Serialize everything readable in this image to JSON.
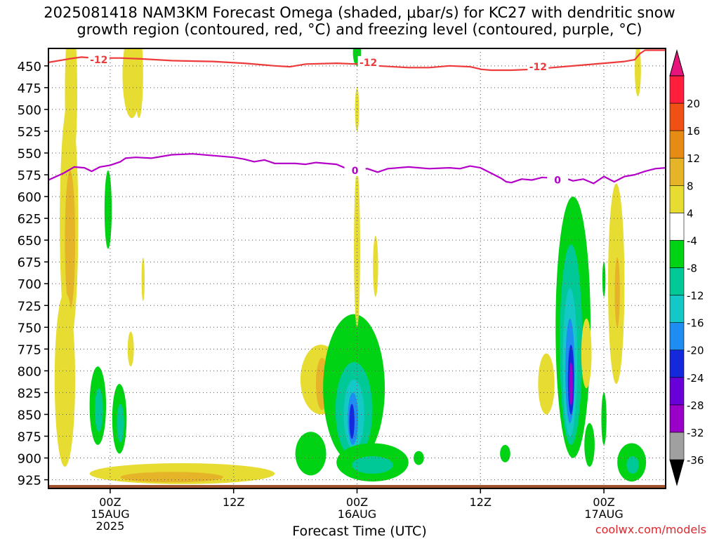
{
  "header": {
    "title_line1": "2025081418 NAM3KM Forecast Omega (shaded, μbar/s) for KC27 with dendritic snow",
    "title_line2": "growth region (contoured, red, °C) and freezing level (contoured, purple, °C)"
  },
  "footer": {
    "credit": "coolwx.com/models",
    "x_axis_title": "Forecast Time (UTC)"
  },
  "chart_data": {
    "type": "heatmap",
    "x_axis": {
      "label": "Forecast Time (UTC)",
      "unit": "hours from 2025-08-14 18Z",
      "range": [
        0,
        60
      ],
      "ticks": [
        {
          "hour": 6,
          "label": "00Z",
          "sub": "15AUG",
          "sub2": "2025"
        },
        {
          "hour": 18,
          "label": "12Z",
          "sub": "",
          "sub2": ""
        },
        {
          "hour": 30,
          "label": "00Z",
          "sub": "16AUG",
          "sub2": ""
        },
        {
          "hour": 42,
          "label": "12Z",
          "sub": "",
          "sub2": ""
        },
        {
          "hour": 54,
          "label": "00Z",
          "sub": "17AUG",
          "sub2": ""
        }
      ]
    },
    "y_axis": {
      "unit": "hPa",
      "range": [
        430,
        935
      ],
      "reversed": true,
      "ticks": [
        450,
        475,
        500,
        525,
        550,
        575,
        600,
        625,
        650,
        675,
        700,
        725,
        750,
        775,
        800,
        825,
        850,
        875,
        900,
        925
      ]
    },
    "grid": true,
    "colorbar": {
      "levels": [
        -36,
        -32,
        -28,
        -24,
        -20,
        -16,
        -12,
        -8,
        -4,
        4,
        8,
        12,
        16,
        20
      ],
      "colors": [
        "#000000",
        "#a0a0a0",
        "#9b00c8",
        "#6a00d8",
        "#1428dc",
        "#1e8cf0",
        "#14c8c8",
        "#00c896",
        "#00d214",
        "#ffffff",
        "#e6dc32",
        "#e6b428",
        "#e68c14",
        "#f05014",
        "#ff1e3c",
        "#e6147c"
      ]
    },
    "contours": [
      {
        "name": "-12",
        "color": "#ee3a3a",
        "labels": [
          {
            "x": 4.9,
            "y": 443
          },
          {
            "x": 31.1,
            "y": 446
          },
          {
            "x": 47.6,
            "y": 451
          }
        ],
        "points": [
          [
            0,
            446
          ],
          [
            2,
            442
          ],
          [
            3.2,
            440
          ],
          [
            4.5,
            441
          ],
          [
            7,
            441
          ],
          [
            9,
            442
          ],
          [
            12,
            444
          ],
          [
            16,
            445
          ],
          [
            19,
            447
          ],
          [
            22,
            450
          ],
          [
            23.5,
            451
          ],
          [
            25,
            448
          ],
          [
            28,
            447
          ],
          [
            30,
            448
          ],
          [
            32,
            450
          ],
          [
            35,
            452
          ],
          [
            37,
            452
          ],
          [
            39,
            450
          ],
          [
            41,
            451
          ],
          [
            42.1,
            454
          ],
          [
            43,
            455
          ],
          [
            45,
            455
          ],
          [
            47,
            454
          ],
          [
            49,
            452
          ],
          [
            52,
            449
          ],
          [
            54,
            447
          ],
          [
            56,
            445
          ],
          [
            57,
            443
          ],
          [
            57.5,
            436
          ],
          [
            58,
            432
          ],
          [
            60,
            432
          ]
        ]
      },
      {
        "name": "0",
        "color": "#b400c8",
        "labels": [
          {
            "x": 29.8,
            "y": 570
          },
          {
            "x": 49.5,
            "y": 581
          }
        ],
        "points": [
          [
            0,
            581
          ],
          [
            1.5,
            573
          ],
          [
            2.5,
            566
          ],
          [
            3.5,
            567
          ],
          [
            4.2,
            571
          ],
          [
            5,
            566
          ],
          [
            6,
            564
          ],
          [
            7,
            560
          ],
          [
            7.5,
            556
          ],
          [
            8.5,
            555
          ],
          [
            10,
            556
          ],
          [
            12,
            552
          ],
          [
            14,
            551
          ],
          [
            16,
            553
          ],
          [
            18,
            555
          ],
          [
            19,
            557
          ],
          [
            20,
            560
          ],
          [
            21,
            558
          ],
          [
            22,
            562
          ],
          [
            24,
            562
          ],
          [
            25,
            563
          ],
          [
            26,
            561
          ],
          [
            28,
            563
          ],
          [
            29,
            568
          ],
          [
            30,
            569
          ],
          [
            31,
            568
          ],
          [
            32,
            572
          ],
          [
            33,
            568
          ],
          [
            35,
            566
          ],
          [
            37,
            568
          ],
          [
            39,
            567
          ],
          [
            40,
            568
          ],
          [
            41,
            565
          ],
          [
            42,
            567
          ],
          [
            43,
            573
          ],
          [
            44,
            579
          ],
          [
            44.5,
            583
          ],
          [
            45,
            584
          ],
          [
            46,
            580
          ],
          [
            47,
            581
          ],
          [
            48,
            578
          ],
          [
            49.5,
            579
          ],
          [
            50.5,
            580
          ],
          [
            51,
            582
          ],
          [
            52,
            580
          ],
          [
            53,
            585
          ],
          [
            54,
            577
          ],
          [
            55,
            583
          ],
          [
            56,
            577
          ],
          [
            57,
            575
          ],
          [
            58,
            571
          ],
          [
            59,
            568
          ],
          [
            60,
            567
          ]
        ]
      }
    ],
    "shaded_regions": [
      {
        "cx": 2.0,
        "cy": 630,
        "rx": 0.9,
        "ry": 140,
        "color": "#e6dc32"
      },
      {
        "cx": 2.1,
        "cy": 650,
        "rx": 0.5,
        "ry": 80,
        "color": "#e6b428"
      },
      {
        "cx": 2.2,
        "cy": 480,
        "rx": 0.6,
        "ry": 90,
        "color": "#e6dc32"
      },
      {
        "cx": 1.6,
        "cy": 810,
        "rx": 1.0,
        "ry": 100,
        "color": "#e6dc32"
      },
      {
        "cx": 8.1,
        "cy": 460,
        "rx": 0.9,
        "ry": 50,
        "color": "#e6dc32"
      },
      {
        "cx": 8.8,
        "cy": 460,
        "rx": 0.4,
        "ry": 50,
        "color": "#e6dc32"
      },
      {
        "cx": 5.8,
        "cy": 615,
        "rx": 0.35,
        "ry": 45,
        "color": "#00d214"
      },
      {
        "cx": 4.8,
        "cy": 840,
        "rx": 0.8,
        "ry": 45,
        "color": "#00d214"
      },
      {
        "cx": 4.9,
        "cy": 845,
        "rx": 0.4,
        "ry": 25,
        "color": "#00c896"
      },
      {
        "cx": 6.9,
        "cy": 855,
        "rx": 0.7,
        "ry": 40,
        "color": "#00d214"
      },
      {
        "cx": 7.0,
        "cy": 860,
        "rx": 0.35,
        "ry": 22,
        "color": "#00c896"
      },
      {
        "cx": 8.0,
        "cy": 775,
        "rx": 0.3,
        "ry": 20,
        "color": "#e6dc32"
      },
      {
        "cx": 9.2,
        "cy": 695,
        "rx": 0.15,
        "ry": 25,
        "color": "#e6dc32"
      },
      {
        "cx": 13,
        "cy": 918,
        "rx": 9,
        "ry": 12,
        "color": "#e6dc32"
      },
      {
        "cx": 12,
        "cy": 922,
        "rx": 5,
        "ry": 6,
        "color": "#e6b428"
      },
      {
        "cx": 26.5,
        "cy": 810,
        "rx": 2.0,
        "ry": 40,
        "color": "#e6dc32"
      },
      {
        "cx": 26.6,
        "cy": 815,
        "rx": 0.6,
        "ry": 30,
        "color": "#e6b428"
      },
      {
        "cx": 29.7,
        "cy": 820,
        "rx": 3.0,
        "ry": 85,
        "color": "#00d214"
      },
      {
        "cx": 29.7,
        "cy": 845,
        "rx": 1.8,
        "ry": 55,
        "color": "#00c896"
      },
      {
        "cx": 29.7,
        "cy": 850,
        "rx": 1.0,
        "ry": 40,
        "color": "#14c8c8"
      },
      {
        "cx": 29.6,
        "cy": 855,
        "rx": 0.5,
        "ry": 30,
        "color": "#1e8cf0"
      },
      {
        "cx": 29.5,
        "cy": 858,
        "rx": 0.25,
        "ry": 20,
        "color": "#1428dc"
      },
      {
        "cx": 25.5,
        "cy": 895,
        "rx": 1.5,
        "ry": 25,
        "color": "#00d214"
      },
      {
        "cx": 31.5,
        "cy": 905,
        "rx": 3.5,
        "ry": 22,
        "color": "#00d214"
      },
      {
        "cx": 31.5,
        "cy": 908,
        "rx": 2.0,
        "ry": 10,
        "color": "#00c896"
      },
      {
        "cx": 30.0,
        "cy": 660,
        "rx": 0.3,
        "ry": 90,
        "color": "#e6dc32"
      },
      {
        "cx": 30.0,
        "cy": 500,
        "rx": 0.2,
        "ry": 25,
        "color": "#e6dc32"
      },
      {
        "cx": 30.0,
        "cy": 435,
        "rx": 0.4,
        "ry": 15,
        "color": "#00d214"
      },
      {
        "cx": 31.8,
        "cy": 680,
        "rx": 0.25,
        "ry": 35,
        "color": "#e6dc32"
      },
      {
        "cx": 36.0,
        "cy": 900,
        "rx": 0.5,
        "ry": 8,
        "color": "#00d214"
      },
      {
        "cx": 44.4,
        "cy": 895,
        "rx": 0.5,
        "ry": 10,
        "color": "#00d214"
      },
      {
        "cx": 48.4,
        "cy": 815,
        "rx": 0.8,
        "ry": 35,
        "color": "#e6dc32"
      },
      {
        "cx": 51.0,
        "cy": 750,
        "rx": 1.7,
        "ry": 150,
        "color": "#00d214"
      },
      {
        "cx": 50.8,
        "cy": 770,
        "rx": 1.1,
        "ry": 115,
        "color": "#00c896"
      },
      {
        "cx": 50.7,
        "cy": 790,
        "rx": 0.7,
        "ry": 85,
        "color": "#14c8c8"
      },
      {
        "cx": 50.7,
        "cy": 800,
        "rx": 0.45,
        "ry": 60,
        "color": "#1e8cf0"
      },
      {
        "cx": 50.8,
        "cy": 810,
        "rx": 0.3,
        "ry": 40,
        "color": "#1428dc"
      },
      {
        "cx": 50.8,
        "cy": 815,
        "rx": 0.18,
        "ry": 25,
        "color": "#9b00c8"
      },
      {
        "cx": 52.3,
        "cy": 780,
        "rx": 0.5,
        "ry": 40,
        "color": "#e6dc32"
      },
      {
        "cx": 52.6,
        "cy": 885,
        "rx": 0.5,
        "ry": 25,
        "color": "#00d214"
      },
      {
        "cx": 55.2,
        "cy": 700,
        "rx": 0.8,
        "ry": 115,
        "color": "#e6dc32"
      },
      {
        "cx": 55.3,
        "cy": 710,
        "rx": 0.25,
        "ry": 40,
        "color": "#e6b428"
      },
      {
        "cx": 56.7,
        "cy": 905,
        "rx": 1.4,
        "ry": 22,
        "color": "#00d214"
      },
      {
        "cx": 56.8,
        "cy": 908,
        "rx": 0.6,
        "ry": 10,
        "color": "#00c896"
      },
      {
        "cx": 57.3,
        "cy": 455,
        "rx": 0.3,
        "ry": 30,
        "color": "#e6dc32"
      },
      {
        "cx": 54.0,
        "cy": 855,
        "rx": 0.25,
        "ry": 30,
        "color": "#00d214"
      },
      {
        "cx": 54.0,
        "cy": 695,
        "rx": 0.15,
        "ry": 20,
        "color": "#00d214"
      }
    ],
    "terrain": {
      "color": "#a0522d",
      "pressure_top": 931
    }
  }
}
